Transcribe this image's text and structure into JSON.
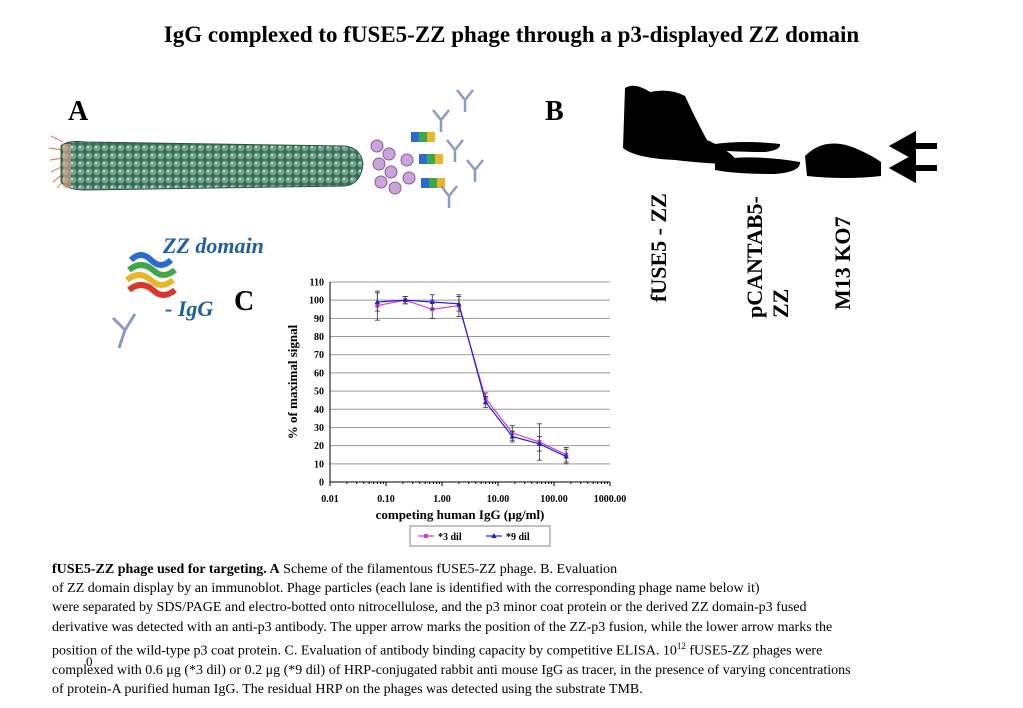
{
  "title": "IgG complexed to fUSE5-ZZ phage through a p3-displayed ZZ domain",
  "panels": {
    "a": "A",
    "b": "B",
    "c": "C"
  },
  "panel_a": {
    "zz_label": "ZZ domain",
    "igg_label": "- IgG"
  },
  "panel_b": {
    "lanes": [
      "fUSE5 - ZZ",
      "pCANTAB5-\nZZ",
      "M13 KO7"
    ]
  },
  "stray_mark": "0",
  "caption": {
    "bold_lead": "fUSE5-ZZ  phage used for targeting. A",
    "line1": " Scheme of the filamentous fUSE5-ZZ phage. B. Evaluation",
    "line2": "of ZZ domain display by an immunoblot. Phage particles (each lane is identified with the corresponding phage name below it)",
    "line3": "were separated by SDS/PAGE and electro-botted onto nitrocellulose, and the p3 minor coat protein or the derived ZZ domain-p3 fused",
    "line4": "derivative was detected with an anti-p3 antibody. The upper arrow marks the position of the ZZ-p3 fusion, while the lower arrow marks the",
    "line5_a": "position of the wild-type p3 coat protein. C. Evaluation of antibody binding capacity by competitive ELISA. 10",
    "line5_sup": "12",
    "line5_b": " fUSE5-ZZ phages were",
    "line6": "complexed with 0.6 μg (*3 dil) or 0.2 μg (*9 dil) of HRP-conjugated rabbit anti mouse IgG as tracer, in the presence of varying concentrations",
    "line7": "of protein-A purified human IgG. The residual HRP on the phages was detected using the substrate TMB."
  },
  "chart_data": {
    "type": "line",
    "xlabel": "competing human IgG (μg/ml)",
    "ylabel": "% of maximal signal",
    "x_scale": "log",
    "xlim": [
      0.01,
      1000
    ],
    "ylim": [
      0,
      110
    ],
    "x_ticks": [
      "0.01",
      "0.10",
      "1.00",
      "10.00",
      "100.00",
      "1000.00"
    ],
    "y_ticks": [
      "0",
      "10",
      "20",
      "30",
      "40",
      "50",
      "60",
      "70",
      "80",
      "90",
      "100",
      "110"
    ],
    "grid": "horizontal",
    "legend_position": "bottom",
    "series": [
      {
        "name": "*3 dil",
        "color": "#d63cd6",
        "marker": "square",
        "x": [
          0.07,
          0.22,
          0.67,
          2.0,
          6.0,
          18.0,
          55.0,
          165.0
        ],
        "y": [
          97,
          100,
          95,
          97,
          46,
          27,
          22,
          15
        ],
        "err": [
          8,
          2,
          5,
          6,
          3,
          4,
          10,
          4
        ]
      },
      {
        "name": "*9 dil",
        "color": "#2222cc",
        "marker": "triangle",
        "x": [
          0.07,
          0.22,
          0.67,
          2.0,
          6.0,
          18.0,
          55.0,
          165.0
        ],
        "y": [
          99,
          100,
          99,
          98,
          44,
          25,
          21,
          14
        ],
        "err": [
          5,
          2,
          4,
          4,
          3,
          3,
          4,
          4
        ]
      }
    ]
  }
}
